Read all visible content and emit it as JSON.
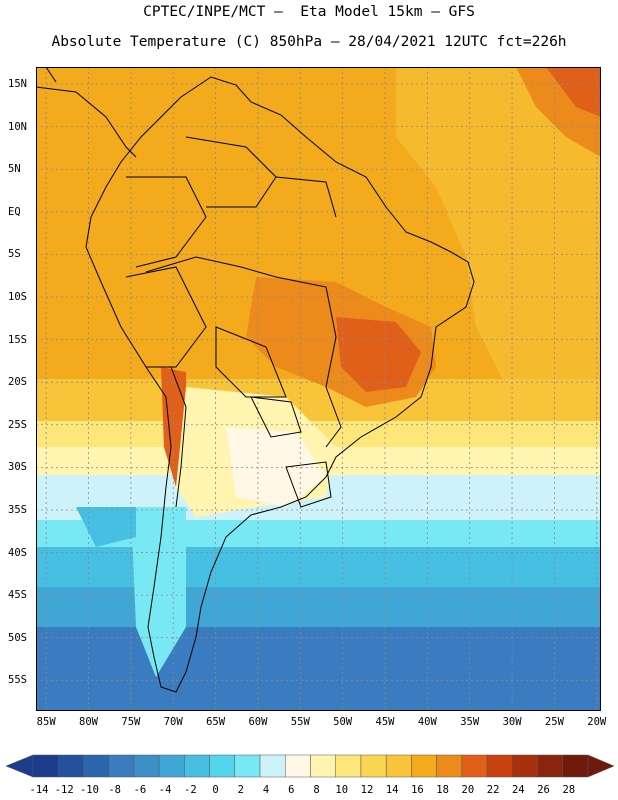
{
  "header": {
    "line1": "CPTEC/INPE/MCT –  Eta Model 15km – GFS",
    "line2": "Absolute Temperature (C) 850hPa – 28/04/2021 12UTC fct=226h"
  },
  "axes": {
    "lat_labels": [
      "15N",
      "10N",
      "5N",
      "EQ",
      "5S",
      "10S",
      "15S",
      "20S",
      "25S",
      "30S",
      "35S",
      "40S",
      "45S",
      "50S",
      "55S"
    ],
    "lon_labels": [
      "85W",
      "80W",
      "75W",
      "70W",
      "65W",
      "60W",
      "55W",
      "50W",
      "45W",
      "40W",
      "35W",
      "30W",
      "25W",
      "20W"
    ]
  },
  "colorbar": {
    "labels": [
      "-14",
      "-12",
      "-10",
      "-8",
      "-6",
      "-4",
      "-2",
      "0",
      "2",
      "4",
      "6",
      "8",
      "10",
      "12",
      "14",
      "16",
      "18",
      "20",
      "22",
      "24",
      "26",
      "28"
    ],
    "colors": [
      "#1e3c8c",
      "#23519e",
      "#2c66ae",
      "#3a7cbf",
      "#3b90c8",
      "#40a6d6",
      "#46bfe2",
      "#52d4ec",
      "#78e8f4",
      "#cdf2fa",
      "#fff8e6",
      "#fff4b0",
      "#fde77a",
      "#fbd653",
      "#f7c43a",
      "#f3aa1c",
      "#ec8b1c",
      "#e0601a",
      "#c9420f",
      "#a8300c",
      "#8b240c",
      "#701a0c"
    ]
  },
  "palette": {
    "cold_deep": "#3a7cbf",
    "cold": "#46bfe2",
    "cool": "#78e8f4",
    "mild": "#fff4b0",
    "warm": "#f7c43a",
    "warmer": "#f3aa1c",
    "hot": "#ec8b1c",
    "hottest": "#c9420f",
    "border": "#000000",
    "grid": "#8a8a8a"
  }
}
